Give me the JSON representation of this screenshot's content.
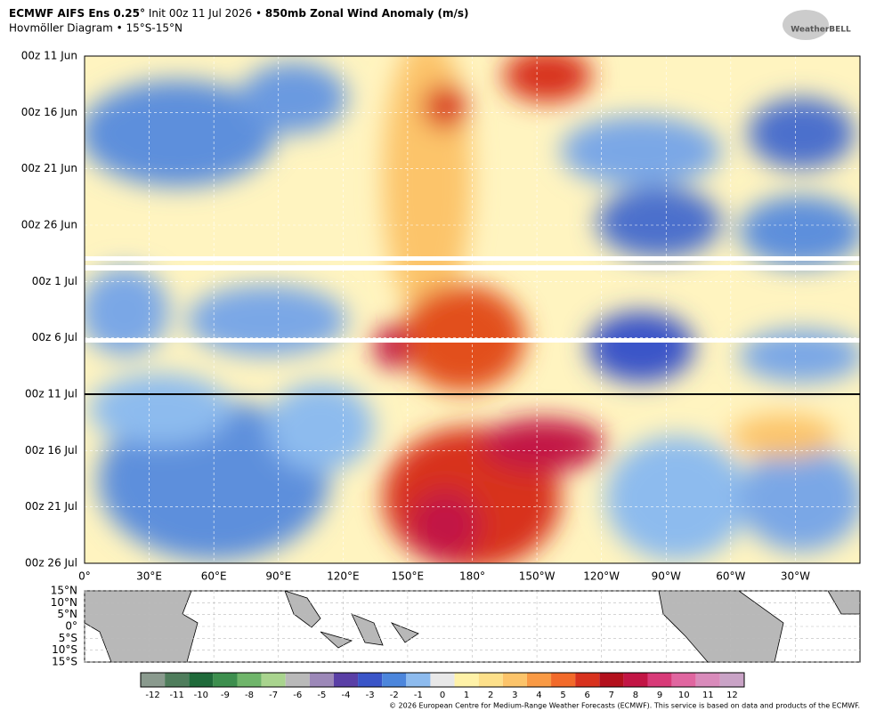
{
  "chart_data": {
    "type": "hovmoller",
    "title_parts": [
      "ECMWF AIFS Ens 0.25°",
      "Init 00z 11 Jul 2026 •",
      "850mb Zonal Wind Anomaly (m/s)"
    ],
    "subtitle": "Hovmöller Diagram • 15°S-15°N",
    "logo": "WeatherBELL",
    "y_labels": [
      "00z 11 Jun",
      "00z 16 Jun",
      "00z 21 Jun",
      "00z 26 Jun",
      "00z 1 Jul",
      "00z 6 Jul",
      "00z 11 Jul",
      "00z 16 Jul",
      "00z 21 Jul",
      "00z 26 Jul"
    ],
    "x_labels": [
      "0°",
      "30°E",
      "60°E",
      "90°E",
      "120°E",
      "150°E",
      "180°",
      "150°W",
      "120°W",
      "90°W",
      "60°W",
      "30°W"
    ],
    "lat_labels": [
      "15°N",
      "10°N",
      "5°N",
      "0°",
      "5°S",
      "10°S",
      "15°S"
    ],
    "colorbar_ticks": [
      -12,
      -11,
      -10,
      -9,
      -8,
      -7,
      -6,
      -5,
      -4,
      -3,
      -2,
      -1,
      0,
      1,
      2,
      3,
      4,
      5,
      6,
      7,
      8,
      9,
      10,
      11,
      12
    ],
    "colorbar_colors": [
      "#8a9a8e",
      "#4f7d5c",
      "#1f6a3a",
      "#3d8f4e",
      "#6fb56a",
      "#a9d48e",
      "#b9b9b9",
      "#9c88b8",
      "#5a3fa6",
      "#3a55c8",
      "#4c86dc",
      "#8dbbee",
      "#e8e8e8",
      "#fff2a8",
      "#fde08a",
      "#fcc46a",
      "#f99a45",
      "#f26a2a",
      "#d8321e",
      "#b3101c",
      "#c21545",
      "#d83a78",
      "#e066a0",
      "#d98bbb",
      "#c9a3c6"
    ],
    "copyright": "© 2026 European Centre for Medium-Range Weather Forecasts (ECMWF). This service is based on data and products of the ECMWF."
  }
}
